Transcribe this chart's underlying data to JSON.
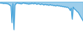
{
  "values": [
    -0.03,
    -0.04,
    -0.03,
    -0.05,
    -0.04,
    -0.05,
    -0.04,
    -0.06,
    -0.05,
    -0.08,
    -0.1,
    -0.12,
    -0.6,
    -0.05,
    -0.8,
    -0.1,
    -0.05,
    -0.04,
    -0.03,
    -0.05,
    -0.04,
    -0.06,
    -0.05,
    -0.04,
    -0.03,
    -0.05,
    -0.04,
    -0.06,
    -0.05,
    -0.07,
    -0.05,
    -0.06,
    -0.04,
    -0.05,
    -0.06,
    -0.04,
    -0.05,
    -0.07,
    -0.06,
    -0.05,
    -0.07,
    -0.08,
    -0.06,
    -0.07,
    -0.09,
    -0.08,
    -0.07,
    -0.09,
    -0.08,
    -0.1,
    -0.09,
    -0.08,
    -0.1,
    -0.09,
    -0.11,
    -0.1,
    -0.12,
    -0.11,
    -0.1,
    -0.12,
    -0.11,
    -0.13,
    -0.12,
    -0.14,
    -0.13,
    -0.15,
    -0.14,
    -0.16,
    -0.15,
    -0.17,
    -0.2,
    -0.25,
    -0.18,
    -0.5,
    -0.15,
    -0.2,
    -0.22,
    -0.25,
    -0.28,
    -0.3,
    -0.35,
    -0.4,
    -0.45,
    -0.5,
    -0.55
  ],
  "line_color": "#3d9fd8",
  "fill_color": "#3d9fd8",
  "background_color": "#ffffff",
  "linewidth": 0.7
}
